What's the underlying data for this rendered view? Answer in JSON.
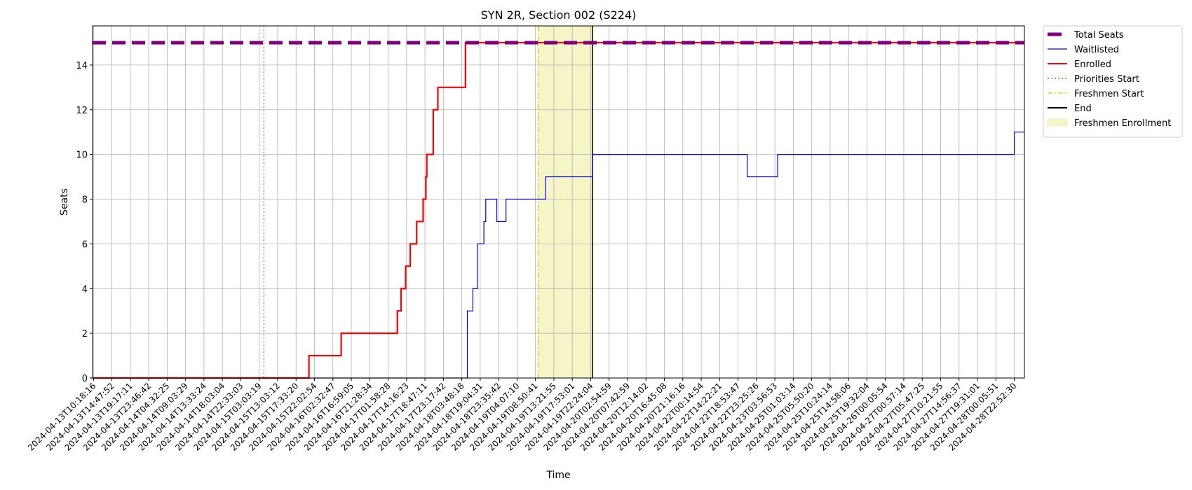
{
  "chart_data": {
    "type": "line",
    "title": "SYN 2R, Section 002 (S224)",
    "xlabel": "Time",
    "ylabel": "Seats",
    "ylim": [
      0,
      15.75
    ],
    "yticks": [
      0,
      2,
      4,
      6,
      8,
      10,
      12,
      14
    ],
    "grid": true,
    "legend_position": "outside-upper-right",
    "xticks": [
      "2024-04-13T10:18:16",
      "2024-04-13T14:47:52",
      "2024-04-13T19:17:11",
      "2024-04-13T23:46:42",
      "2024-04-14T04:32:25",
      "2024-04-14T09:03:29",
      "2024-04-14T13:33:24",
      "2024-04-14T18:03:04",
      "2024-04-14T22:33:03",
      "2024-04-15T03:03:19",
      "2024-04-15T13:03:12",
      "2024-04-15T17:33:20",
      "2024-04-15T22:02:54",
      "2024-04-16T02:32:47",
      "2024-04-16T16:59:05",
      "2024-04-16T21:28:34",
      "2024-04-17T01:58:28",
      "2024-04-17T14:16:23",
      "2024-04-17T18:47:11",
      "2024-04-17T23:17:42",
      "2024-04-18T03:48:18",
      "2024-04-18T19:04:31",
      "2024-04-18T23:35:42",
      "2024-04-19T04:07:10",
      "2024-04-19T08:50:41",
      "2024-04-19T13:21:55",
      "2024-04-19T17:53:01",
      "2024-04-19T22:24:04",
      "2024-04-20T02:54:59",
      "2024-04-20T07:42:59",
      "2024-04-20T12:14:02",
      "2024-04-20T16:45:08",
      "2024-04-20T21:16:16",
      "2024-04-22T00:14:54",
      "2024-04-22T14:22:21",
      "2024-04-22T18:53:47",
      "2024-04-22T23:25:26",
      "2024-04-23T03:56:53",
      "2024-04-25T01:03:14",
      "2024-04-25T05:50:20",
      "2024-04-25T10:24:14",
      "2024-04-25T14:58:06",
      "2024-04-25T19:32:04",
      "2024-04-26T00:05:54",
      "2024-04-27T00:57:14",
      "2024-04-27T05:47:25",
      "2024-04-27T10:21:55",
      "2024-04-27T14:56:37",
      "2024-04-27T19:31:01",
      "2024-04-28T00:05:51",
      "2024-04-28T22:52:30"
    ],
    "xrange_ticks": [
      -0.05,
      50.55
    ],
    "series": [
      {
        "name": "Total Seats",
        "color": "#800080",
        "style": "dashed",
        "points": [
          [
            -0.05,
            15
          ],
          [
            50.55,
            15
          ]
        ]
      },
      {
        "name": "Waitlisted",
        "color": "#0000ff",
        "style": "solid",
        "points": [
          [
            11.7,
            0
          ],
          [
            20.3,
            0
          ],
          [
            20.3,
            3
          ],
          [
            20.6,
            3
          ],
          [
            20.6,
            4
          ],
          [
            20.85,
            4
          ],
          [
            20.85,
            6
          ],
          [
            21.2,
            6
          ],
          [
            21.2,
            7
          ],
          [
            21.3,
            7
          ],
          [
            21.3,
            8
          ],
          [
            21.9,
            8
          ],
          [
            21.9,
            7
          ],
          [
            22.4,
            7
          ],
          [
            22.4,
            8
          ],
          [
            24.0,
            8
          ],
          [
            24.0,
            8
          ],
          [
            24.55,
            8
          ],
          [
            24.55,
            9
          ],
          [
            27.1,
            9
          ],
          [
            27.1,
            10
          ],
          [
            35.5,
            10
          ],
          [
            35.5,
            9
          ],
          [
            37.15,
            9
          ],
          [
            37.15,
            10
          ],
          [
            50.0,
            10
          ],
          [
            50.0,
            11
          ],
          [
            50.55,
            11
          ]
        ]
      },
      {
        "name": "Enrolled",
        "color": "#ff0000",
        "style": "solid",
        "points": [
          [
            -0.05,
            0
          ],
          [
            11.7,
            0
          ],
          [
            11.7,
            1
          ],
          [
            13.45,
            1
          ],
          [
            13.45,
            2
          ],
          [
            16.5,
            2
          ],
          [
            16.5,
            3
          ],
          [
            16.7,
            3
          ],
          [
            16.7,
            4
          ],
          [
            16.95,
            4
          ],
          [
            16.95,
            5
          ],
          [
            17.2,
            5
          ],
          [
            17.2,
            6
          ],
          [
            17.55,
            6
          ],
          [
            17.55,
            7
          ],
          [
            17.9,
            7
          ],
          [
            17.9,
            8
          ],
          [
            18.05,
            8
          ],
          [
            18.05,
            9
          ],
          [
            18.1,
            9
          ],
          [
            18.1,
            10
          ],
          [
            18.45,
            10
          ],
          [
            18.45,
            12
          ],
          [
            18.7,
            12
          ],
          [
            18.7,
            13
          ],
          [
            20.2,
            13
          ],
          [
            20.2,
            15
          ],
          [
            50.55,
            15
          ]
        ]
      }
    ],
    "vlines": [
      {
        "name": "Priorities Start",
        "x": 9.25,
        "color": "#e06020",
        "style": "dotted"
      },
      {
        "name": "Freshmen Start",
        "x": 24.15,
        "color": "#c8d400",
        "style": "dashdot"
      },
      {
        "name": "End",
        "x": 27.1,
        "color": "#000000",
        "style": "solid"
      }
    ],
    "spans": [
      {
        "name": "Freshmen Enrollment",
        "x0": 24.15,
        "x1": 27.1,
        "color": "#f5f5c8"
      }
    ],
    "legend": [
      {
        "label": "Total Seats",
        "color": "#800080",
        "style": "thick-dashed"
      },
      {
        "label": "Waitlisted",
        "color": "#0000ff",
        "style": "thin"
      },
      {
        "label": "Enrolled",
        "color": "#ff0000",
        "style": "solid"
      },
      {
        "label": "Priorities Start",
        "color": "#e06020",
        "style": "dotted"
      },
      {
        "label": "Freshmen Start",
        "color": "#c8d400",
        "style": "dashdot"
      },
      {
        "label": "End",
        "color": "#000000",
        "style": "solid"
      },
      {
        "label": "Freshmen Enrollment",
        "color": "#f5f5c8",
        "style": "patch"
      }
    ]
  }
}
